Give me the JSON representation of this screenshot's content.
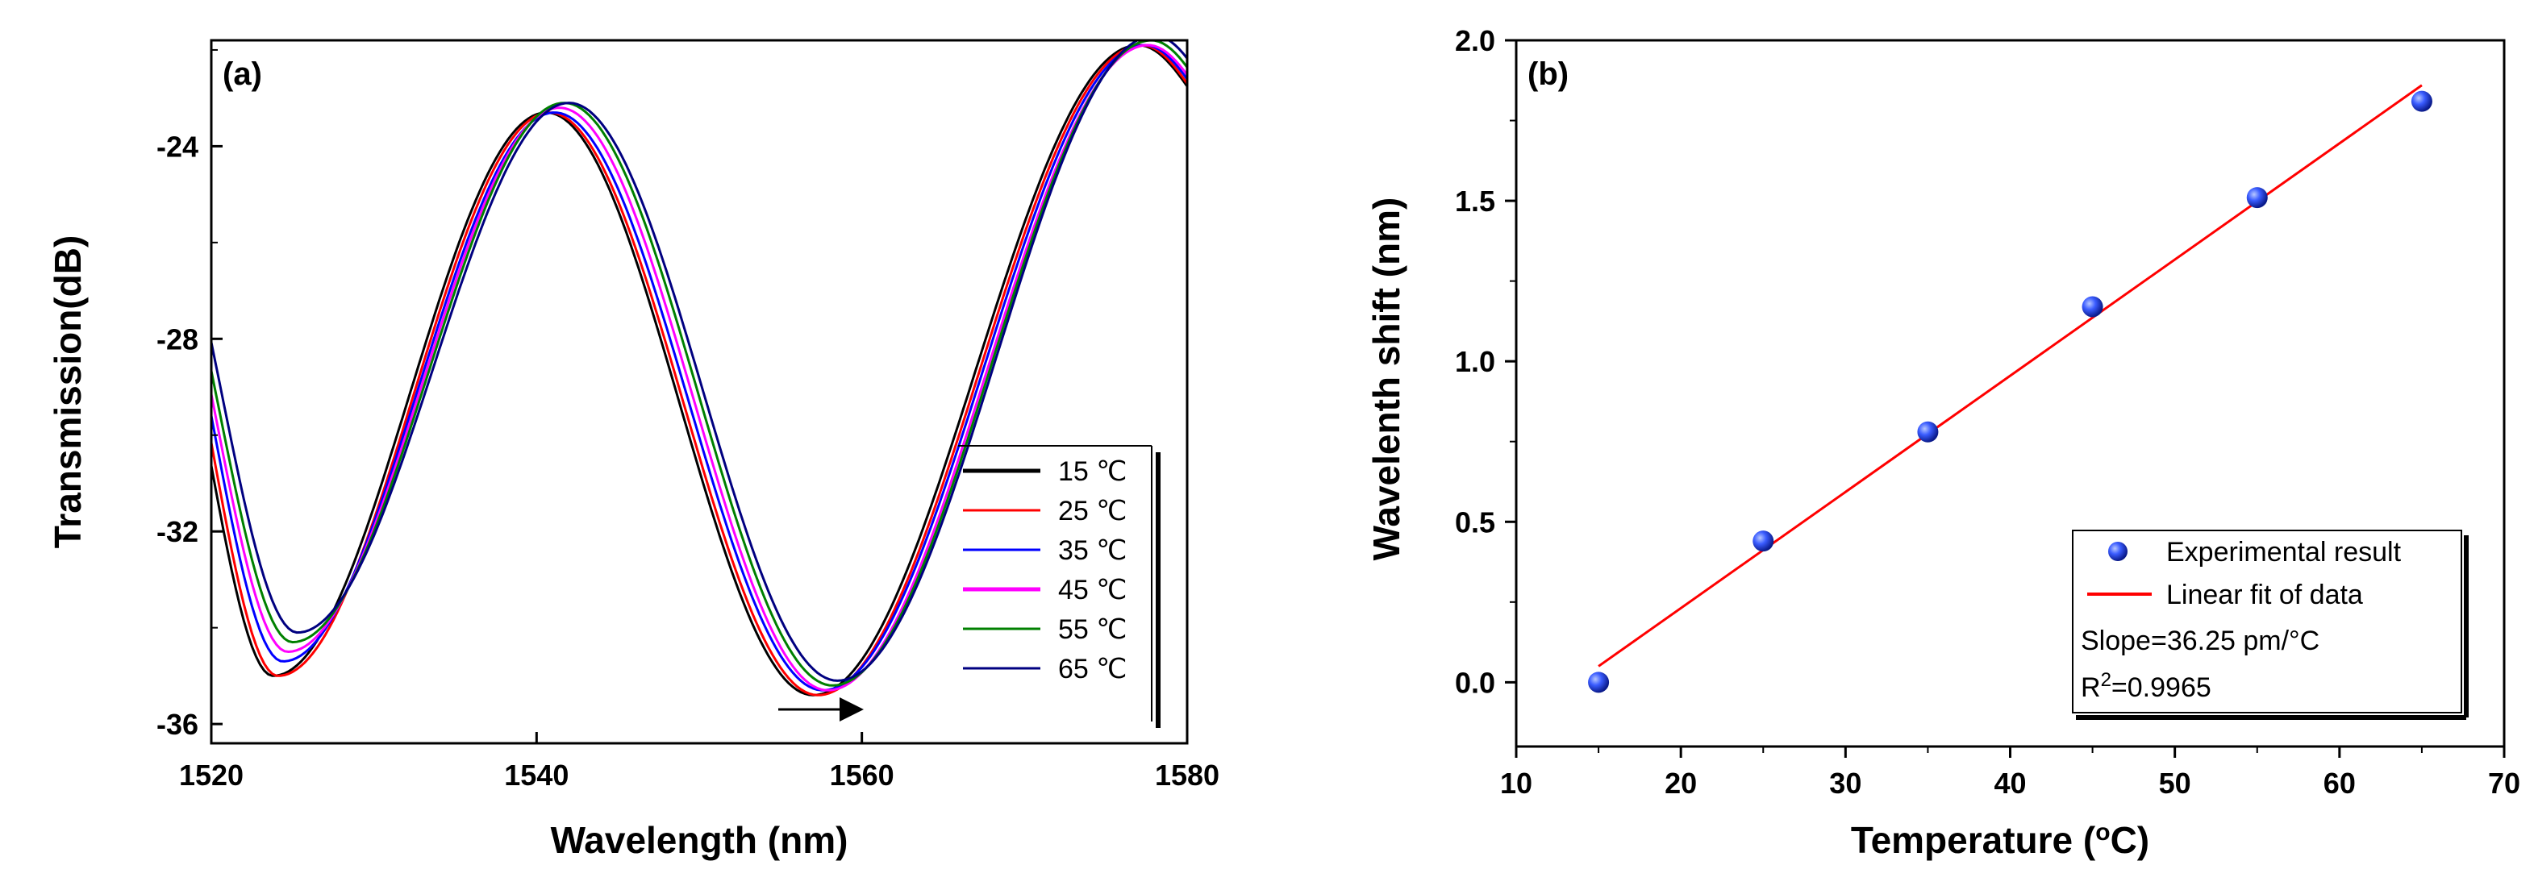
{
  "chart_data": [
    {
      "type": "line",
      "panel_label": "(a)",
      "xlabel": "Wavelength (nm)",
      "ylabel": "Transmission(dB)",
      "xlim": [
        1520,
        1580
      ],
      "ylim": [
        -36.4,
        -21.8
      ],
      "xticks": [
        1520,
        1540,
        1560,
        1580
      ],
      "xtick_labels": [
        "1520",
        "1540",
        "1560",
        "1580"
      ],
      "yticks": [
        -36,
        -32,
        -28,
        -24
      ],
      "ytick_labels": [
        "-36",
        "-32",
        "-28",
        "-24"
      ],
      "legend_position": "lower-right",
      "annotation": "arrow indicating red shift of dip near 1557 nm",
      "series": [
        {
          "name": "15 ℃",
          "color": "#000000",
          "x": [
            1520,
            1524,
            1541,
            1557,
            1577,
            1580
          ],
          "y": [
            -30.4,
            -35.0,
            -23.3,
            -35.4,
            -21.9,
            -22.6
          ],
          "params": {
            "dip1": 1523.8,
            "peak1": 1540.6,
            "dip2": 1557.0,
            "peak2": 1577.0
          }
        },
        {
          "name": "25 ℃",
          "color": "#ff0000",
          "x": [
            1520,
            1524,
            1541,
            1557,
            1577,
            1580
          ],
          "y": [
            -30.0,
            -35.0,
            -23.3,
            -35.4,
            -21.9,
            -22.6
          ],
          "params": {
            "dip1": 1524.1,
            "peak1": 1540.8,
            "dip2": 1557.3,
            "peak2": 1577.2
          }
        },
        {
          "name": "35 ℃",
          "color": "#0000ff",
          "x": [
            1520,
            1524,
            1541,
            1558,
            1577,
            1580
          ],
          "y": [
            -29.7,
            -34.7,
            -23.3,
            -35.3,
            -21.9,
            -22.5
          ],
          "params": {
            "dip1": 1524.4,
            "peak1": 1541.1,
            "dip2": 1557.6,
            "peak2": 1577.4
          }
        },
        {
          "name": "45 ℃",
          "color": "#ff00ff",
          "x": [
            1520,
            1525,
            1541,
            1558,
            1578,
            1580
          ],
          "y": [
            -29.5,
            -34.5,
            -23.2,
            -35.3,
            -21.9,
            -22.4
          ],
          "params": {
            "dip1": 1524.7,
            "peak1": 1541.4,
            "dip2": 1557.9,
            "peak2": 1577.6
          }
        },
        {
          "name": "55 ℃",
          "color": "#008000",
          "x": [
            1520,
            1525,
            1542,
            1558,
            1578,
            1580
          ],
          "y": [
            -29.2,
            -34.3,
            -23.1,
            -35.2,
            -21.8,
            -22.3
          ],
          "params": {
            "dip1": 1525.0,
            "peak1": 1541.7,
            "dip2": 1558.2,
            "peak2": 1577.8
          }
        },
        {
          "name": "65 ℃",
          "color": "#000080",
          "x": [
            1520,
            1525,
            1542,
            1558,
            1578,
            1580
          ],
          "y": [
            -28.7,
            -34.1,
            -23.1,
            -35.1,
            -21.7,
            -22.1
          ],
          "params": {
            "dip1": 1525.3,
            "peak1": 1542.0,
            "dip2": 1558.5,
            "peak2": 1578.0
          }
        }
      ]
    },
    {
      "type": "scatter",
      "panel_label": "(b)",
      "xlabel": "Temperature (°C)",
      "ylabel": "Wavelenth shift (nm)",
      "xlim": [
        10,
        70
      ],
      "ylim": [
        -0.2,
        2.0
      ],
      "xticks": [
        10,
        20,
        30,
        40,
        50,
        60,
        70
      ],
      "xtick_labels": [
        "10",
        "20",
        "30",
        "40",
        "50",
        "60",
        "70"
      ],
      "yticks": [
        0.0,
        0.5,
        1.0,
        1.5,
        2.0
      ],
      "ytick_labels": [
        "0.0",
        "0.5",
        "1.0",
        "1.5",
        "2.0"
      ],
      "legend_position": "lower-right",
      "series": [
        {
          "name": "Experimental result",
          "color": "#0000ff",
          "x": [
            15,
            25,
            35,
            45,
            55,
            65
          ],
          "y": [
            0.0,
            0.44,
            0.78,
            1.17,
            1.51,
            1.81
          ]
        },
        {
          "name": "Linear fit of data",
          "color": "#ff0000",
          "x": [
            15,
            65
          ],
          "y": [
            0.05,
            1.86
          ]
        }
      ],
      "fit_text": {
        "slope": "Slope=36.25 pm/°C",
        "r2_prefix": "R",
        "r2_sup": "2",
        "r2_value": "=0.9965"
      }
    }
  ]
}
